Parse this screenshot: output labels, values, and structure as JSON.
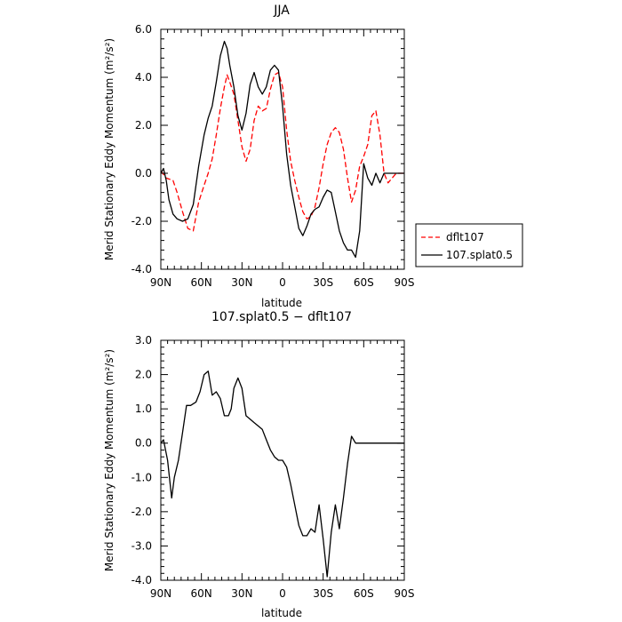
{
  "chart_data": [
    {
      "type": "line",
      "title": "JJA",
      "xlabel": "latitude",
      "ylabel": "Merid Stationary Eddy Momentum (m²/s²)",
      "x_direction": "north-to-south",
      "x_ticks": [
        90,
        60,
        30,
        0,
        -30,
        -60,
        -90
      ],
      "x_tick_labels": [
        "90N",
        "60N",
        "30N",
        "0",
        "30S",
        "60S",
        "90S"
      ],
      "xlim": [
        90,
        -90
      ],
      "ylim": [
        -4,
        6
      ],
      "y_ticks": [
        -4,
        -2,
        0,
        2,
        4,
        6
      ],
      "y_tick_labels": [
        "-4.0",
        "-2.0",
        "0.0",
        "2.0",
        "4.0",
        "6.0"
      ],
      "legend": {
        "placement": "right",
        "entries": [
          "dflt107",
          "107.splat0.5"
        ]
      },
      "series": [
        {
          "name": "dflt107",
          "color": "#ff0000",
          "dash": true,
          "x": [
            90,
            86,
            81,
            78,
            74,
            70,
            66,
            62,
            58,
            55,
            52,
            49,
            46,
            43,
            41,
            39,
            36,
            33,
            30,
            27,
            24,
            21,
            18,
            15,
            12,
            9,
            6,
            3,
            0,
            -3,
            -6,
            -9,
            -12,
            -15,
            -18,
            -21,
            -24,
            -27,
            -30,
            -33,
            -36,
            -39,
            -42,
            -45,
            -48,
            -51,
            -54,
            -57,
            -60,
            -63,
            -66,
            -69,
            -72,
            -75,
            -78,
            -81,
            -84,
            -86,
            -88,
            -90
          ],
          "y": [
            0.1,
            -0.2,
            -0.3,
            -0.8,
            -1.6,
            -2.3,
            -2.4,
            -1.2,
            -0.5,
            0.0,
            0.6,
            1.6,
            2.7,
            3.6,
            4.1,
            3.8,
            3.3,
            2.2,
            1.1,
            0.5,
            1.0,
            2.2,
            2.8,
            2.6,
            2.7,
            3.5,
            4.1,
            4.2,
            3.6,
            1.8,
            0.5,
            -0.3,
            -1.0,
            -1.6,
            -1.9,
            -1.8,
            -1.4,
            -0.6,
            0.4,
            1.2,
            1.7,
            1.9,
            1.7,
            1.0,
            -0.2,
            -1.2,
            -0.7,
            0.3,
            0.7,
            1.2,
            2.4,
            2.6,
            1.6,
            0.0,
            -0.4,
            -0.2,
            0.0,
            0.0,
            0.0,
            0.0
          ]
        },
        {
          "name": "107.splat0.5",
          "color": "#000000",
          "dash": false,
          "x": [
            90,
            88,
            86,
            84,
            81,
            78,
            74,
            70,
            66,
            62,
            58,
            55,
            52,
            49,
            46,
            43,
            41,
            39,
            36,
            33,
            30,
            27,
            24,
            21,
            18,
            15,
            12,
            9,
            6,
            3,
            0,
            -3,
            -6,
            -9,
            -12,
            -15,
            -18,
            -21,
            -24,
            -27,
            -30,
            -33,
            -36,
            -39,
            -42,
            -45,
            -48,
            -51,
            -54,
            -57,
            -60,
            -63,
            -66,
            -69,
            -72,
            -75,
            -78,
            -81,
            -84,
            -86,
            -88,
            -90
          ],
          "y": [
            0.0,
            0.2,
            -0.3,
            -1.1,
            -1.7,
            -1.9,
            -2.0,
            -1.9,
            -1.3,
            0.3,
            1.6,
            2.3,
            2.8,
            3.8,
            4.9,
            5.5,
            5.2,
            4.5,
            3.6,
            2.4,
            1.8,
            2.5,
            3.7,
            4.2,
            3.6,
            3.3,
            3.6,
            4.3,
            4.5,
            4.3,
            2.8,
            0.8,
            -0.5,
            -1.4,
            -2.3,
            -2.6,
            -2.2,
            -1.7,
            -1.5,
            -1.4,
            -1.0,
            -0.7,
            -0.8,
            -1.6,
            -2.4,
            -2.9,
            -3.2,
            -3.2,
            -3.5,
            -2.4,
            0.4,
            -0.2,
            -0.5,
            0.0,
            -0.4,
            0.0,
            0.0,
            0.0,
            0.0,
            0.0,
            0.0,
            0.0
          ]
        }
      ]
    },
    {
      "type": "line",
      "title": "107.splat0.5 − dflt107",
      "xlabel": "latitude",
      "ylabel": "Merid Stationary Eddy Momentum (m²/s²)",
      "x_direction": "north-to-south",
      "x_ticks": [
        90,
        60,
        30,
        0,
        -30,
        -60,
        -90
      ],
      "x_tick_labels": [
        "90N",
        "60N",
        "30N",
        "0",
        "30S",
        "60S",
        "90S"
      ],
      "xlim": [
        90,
        -90
      ],
      "ylim": [
        -4,
        3
      ],
      "y_ticks": [
        -4,
        -3,
        -2,
        -1,
        0,
        1,
        2,
        3
      ],
      "y_tick_labels": [
        "-4.0",
        "-3.0",
        "-2.0",
        "-1.0",
        "0.0",
        "1.0",
        "2.0",
        "3.0"
      ],
      "series": [
        {
          "color": "#000000",
          "dash": false,
          "x": [
            90,
            88,
            85,
            82,
            80,
            77,
            74,
            71,
            68,
            64,
            61,
            58,
            55,
            52,
            49,
            46,
            43,
            40,
            38,
            36,
            33,
            30,
            27,
            24,
            21,
            18,
            15,
            12,
            9,
            6,
            3,
            0,
            -3,
            -6,
            -9,
            -12,
            -15,
            -18,
            -21,
            -24,
            -27,
            -30,
            -33,
            -36,
            -39,
            -42,
            -45,
            -48,
            -51,
            -54,
            -57,
            -60,
            -63,
            -66,
            -69,
            -72,
            -75,
            -78,
            -81,
            -84,
            -86,
            -88,
            -90
          ],
          "y": [
            0.0,
            0.1,
            -0.5,
            -1.6,
            -1.0,
            -0.5,
            0.3,
            1.1,
            1.1,
            1.2,
            1.5,
            2.0,
            2.1,
            1.4,
            1.5,
            1.3,
            0.8,
            0.8,
            1.0,
            1.6,
            1.9,
            1.6,
            0.8,
            0.7,
            0.6,
            0.5,
            0.4,
            0.1,
            -0.2,
            -0.4,
            -0.5,
            -0.5,
            -0.7,
            -1.2,
            -1.8,
            -2.4,
            -2.7,
            -2.7,
            -2.5,
            -2.6,
            -1.8,
            -2.8,
            -3.9,
            -2.6,
            -1.8,
            -2.5,
            -1.6,
            -0.6,
            0.2,
            0.0,
            0.0,
            0.0,
            0.0,
            0.0,
            0.0,
            0.0,
            0.0,
            0.0,
            0.0,
            0.0,
            0.0,
            0.0,
            0.0
          ]
        }
      ]
    }
  ]
}
